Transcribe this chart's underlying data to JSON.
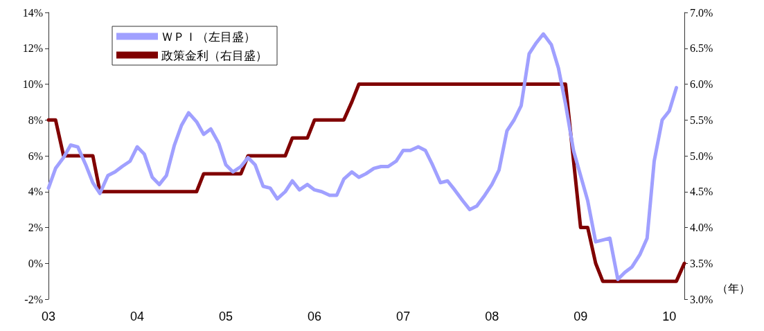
{
  "chart_data": {
    "type": "line",
    "xlabel": "（年）",
    "legend": "top left",
    "grid": false,
    "marker": "none",
    "line_style": "solid",
    "xlim": [
      2003,
      2010.17
    ],
    "xticks": [
      {
        "value": 2003,
        "label": "03"
      },
      {
        "value": 2004,
        "label": "04"
      },
      {
        "value": 2005,
        "label": "05"
      },
      {
        "value": 2006,
        "label": "06"
      },
      {
        "value": 2007,
        "label": "07"
      },
      {
        "value": 2008,
        "label": "08"
      },
      {
        "value": 2009,
        "label": "09"
      },
      {
        "value": 2010,
        "label": "10"
      }
    ],
    "ylim": [
      -2,
      14
    ],
    "yticks": [
      {
        "value": -2,
        "label": "-2%"
      },
      {
        "value": 0,
        "label": "0%"
      },
      {
        "value": 2,
        "label": "2%"
      },
      {
        "value": 4,
        "label": "4%"
      },
      {
        "value": 6,
        "label": "6%"
      },
      {
        "value": 8,
        "label": "8%"
      },
      {
        "value": 10,
        "label": "10%"
      },
      {
        "value": 12,
        "label": "12%"
      },
      {
        "value": 14,
        "label": "14%"
      }
    ],
    "y2lim": [
      3.0,
      7.0
    ],
    "y2ticks": [
      {
        "value": 3.0,
        "label": "3.0%"
      },
      {
        "value": 3.5,
        "label": "3.5%"
      },
      {
        "value": 4.0,
        "label": "4.0%"
      },
      {
        "value": 4.5,
        "label": "4.5%"
      },
      {
        "value": 5.0,
        "label": "5.0%"
      },
      {
        "value": 5.5,
        "label": "5.5%"
      },
      {
        "value": 6.0,
        "label": "6.0%"
      },
      {
        "value": 6.5,
        "label": "6.5%"
      },
      {
        "value": 7.0,
        "label": "7.0%"
      }
    ],
    "series": [
      {
        "name": "ＷＰＩ（左目盛）",
        "color": "#a0a0ff",
        "x": [
          2003.0,
          2003.08,
          2003.17,
          2003.25,
          2003.33,
          2003.42,
          2003.5,
          2003.58,
          2003.67,
          2003.75,
          2003.83,
          2003.92,
          2004.0,
          2004.08,
          2004.17,
          2004.25,
          2004.33,
          2004.42,
          2004.5,
          2004.58,
          2004.67,
          2004.75,
          2004.83,
          2004.92,
          2005.0,
          2005.08,
          2005.17,
          2005.25,
          2005.33,
          2005.42,
          2005.5,
          2005.58,
          2005.67,
          2005.75,
          2005.83,
          2005.92,
          2006.0,
          2006.08,
          2006.17,
          2006.25,
          2006.33,
          2006.42,
          2006.5,
          2006.58,
          2006.67,
          2006.75,
          2006.83,
          2006.92,
          2007.0,
          2007.08,
          2007.17,
          2007.25,
          2007.33,
          2007.42,
          2007.5,
          2007.58,
          2007.67,
          2007.75,
          2007.83,
          2007.92,
          2008.0,
          2008.08,
          2008.17,
          2008.25,
          2008.33,
          2008.42,
          2008.5,
          2008.58,
          2008.67,
          2008.75,
          2008.83,
          2008.92,
          2009.0,
          2009.08,
          2009.17,
          2009.25,
          2009.33,
          2009.42,
          2009.5,
          2009.58,
          2009.67,
          2009.75,
          2009.83,
          2009.92,
          2010.0,
          2010.08
        ],
        "values": [
          4.2,
          5.3,
          5.9,
          6.6,
          6.5,
          5.5,
          4.5,
          3.9,
          4.9,
          5.1,
          5.4,
          5.7,
          6.5,
          6.1,
          4.8,
          4.4,
          4.9,
          6.6,
          7.7,
          8.4,
          7.9,
          7.2,
          7.5,
          6.7,
          5.5,
          5.1,
          5.4,
          5.9,
          5.5,
          4.3,
          4.2,
          3.6,
          4.0,
          4.6,
          4.1,
          4.4,
          4.1,
          4.0,
          3.8,
          3.8,
          4.7,
          5.1,
          4.8,
          5.0,
          5.3,
          5.4,
          5.4,
          5.7,
          6.3,
          6.3,
          6.5,
          6.3,
          5.5,
          4.5,
          4.6,
          4.1,
          3.5,
          3.0,
          3.2,
          3.8,
          4.4,
          5.2,
          7.4,
          8.0,
          8.8,
          11.7,
          12.3,
          12.8,
          12.2,
          10.9,
          8.9,
          6.3,
          4.9,
          3.5,
          1.2,
          1.3,
          1.4,
          -0.9,
          -0.5,
          -0.2,
          0.5,
          1.4,
          5.7,
          8.0,
          8.5,
          9.8
        ]
      },
      {
        "name": "政策金利（右目盛）",
        "color": "#800000",
        "axis": "y2",
        "x": [
          2003.0,
          2003.08,
          2003.17,
          2003.5,
          2003.58,
          2004.67,
          2004.75,
          2005.17,
          2005.25,
          2005.67,
          2005.75,
          2005.92,
          2006.0,
          2006.33,
          2006.42,
          2006.5,
          2008.83,
          2009.0,
          2009.08,
          2009.17,
          2009.25,
          2010.08,
          2010.17
        ],
        "values": [
          5.5,
          5.5,
          5.0,
          5.0,
          4.5,
          4.5,
          4.75,
          4.75,
          5.0,
          5.0,
          5.25,
          5.25,
          5.5,
          5.5,
          5.75,
          6.0,
          6.0,
          4.0,
          4.0,
          3.5,
          3.25,
          3.25,
          3.5
        ]
      }
    ]
  }
}
